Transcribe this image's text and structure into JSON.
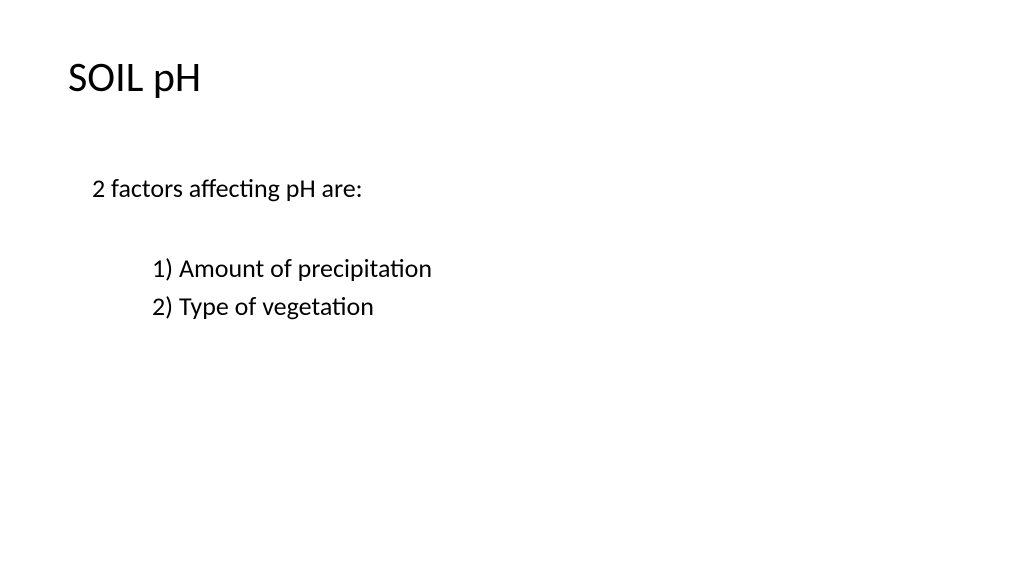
{
  "slide": {
    "title": "SOIL pH",
    "intro": "2 factors affecting pH are:",
    "items": [
      "1) Amount of precipitation",
      "2) Type of vegetation"
    ],
    "styling": {
      "background_color": "#ffffff",
      "text_color": "#000000",
      "title_fontsize": 42,
      "body_fontsize": 26,
      "font_family": "Calibri"
    }
  }
}
